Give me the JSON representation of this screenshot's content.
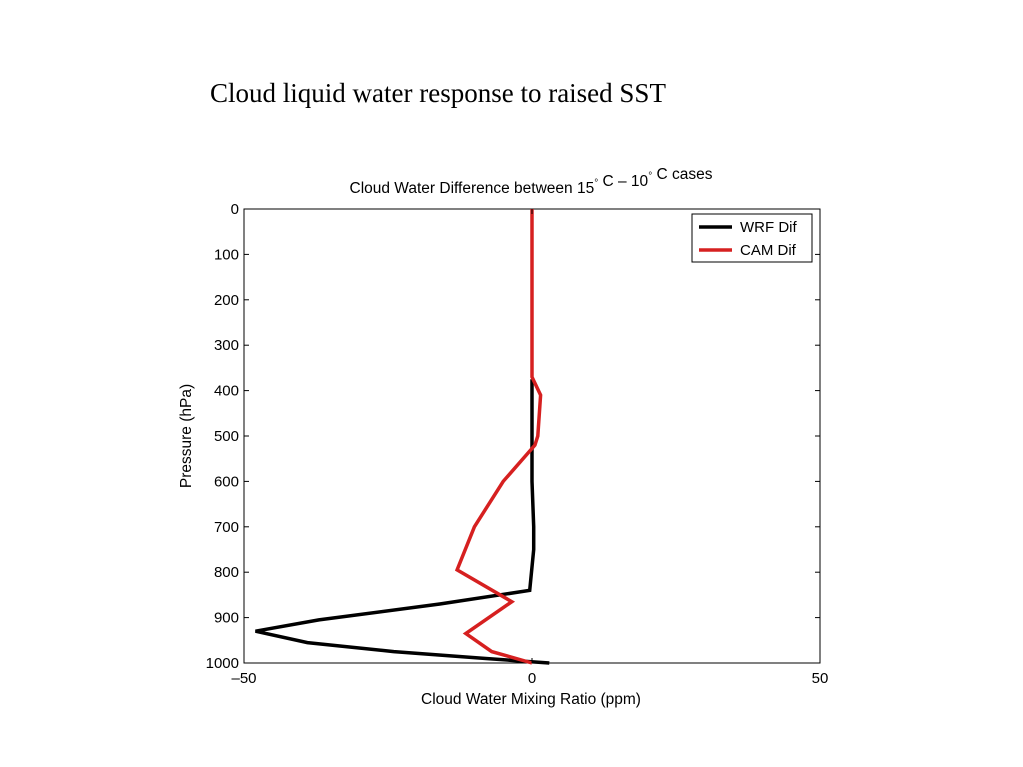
{
  "slide": {
    "title": "Cloud liquid water response to raised SST"
  },
  "chart_data": {
    "type": "line",
    "title": "Cloud Water Difference between 15° C – 10° C cases",
    "xlabel": "Cloud Water Mixing Ratio (ppm)",
    "ylabel": "Pressure (hPa)",
    "xlim": [
      -50,
      50
    ],
    "ylim": [
      0,
      1000
    ],
    "y_reversed": true,
    "grid": false,
    "legend_placement": "top-right",
    "x_ticks": [
      -50,
      0,
      50
    ],
    "x_tick_labels": [
      "–50",
      "0",
      "50"
    ],
    "y_ticks": [
      0,
      100,
      200,
      300,
      400,
      500,
      600,
      700,
      800,
      900,
      1000
    ],
    "y_tick_labels": [
      "0",
      "100",
      "200",
      "300",
      "400",
      "500",
      "600",
      "700",
      "800",
      "900",
      "1000"
    ],
    "series": [
      {
        "name": "WRF Dif",
        "color": "#000000",
        "points": [
          [
            0,
            375
          ],
          [
            0,
            500
          ],
          [
            0,
            600
          ],
          [
            0.3,
            700
          ],
          [
            0.3,
            750
          ],
          [
            -0.4,
            840
          ],
          [
            -16,
            870
          ],
          [
            -37,
            905
          ],
          [
            -48,
            930
          ],
          [
            -39,
            955
          ],
          [
            -24,
            975
          ],
          [
            -8,
            990
          ],
          [
            3,
            1000
          ]
        ]
      },
      {
        "name": "CAM Dif",
        "color": "#d62020",
        "points": [
          [
            0,
            0
          ],
          [
            0,
            100
          ],
          [
            0,
            200
          ],
          [
            0,
            300
          ],
          [
            0,
            370
          ],
          [
            1.5,
            410
          ],
          [
            1,
            500
          ],
          [
            0.5,
            520
          ],
          [
            -5,
            600
          ],
          [
            -10,
            700
          ],
          [
            -13,
            795
          ],
          [
            -3.5,
            865
          ],
          [
            -11.5,
            935
          ],
          [
            -7,
            975
          ],
          [
            0,
            1000
          ]
        ]
      }
    ]
  }
}
